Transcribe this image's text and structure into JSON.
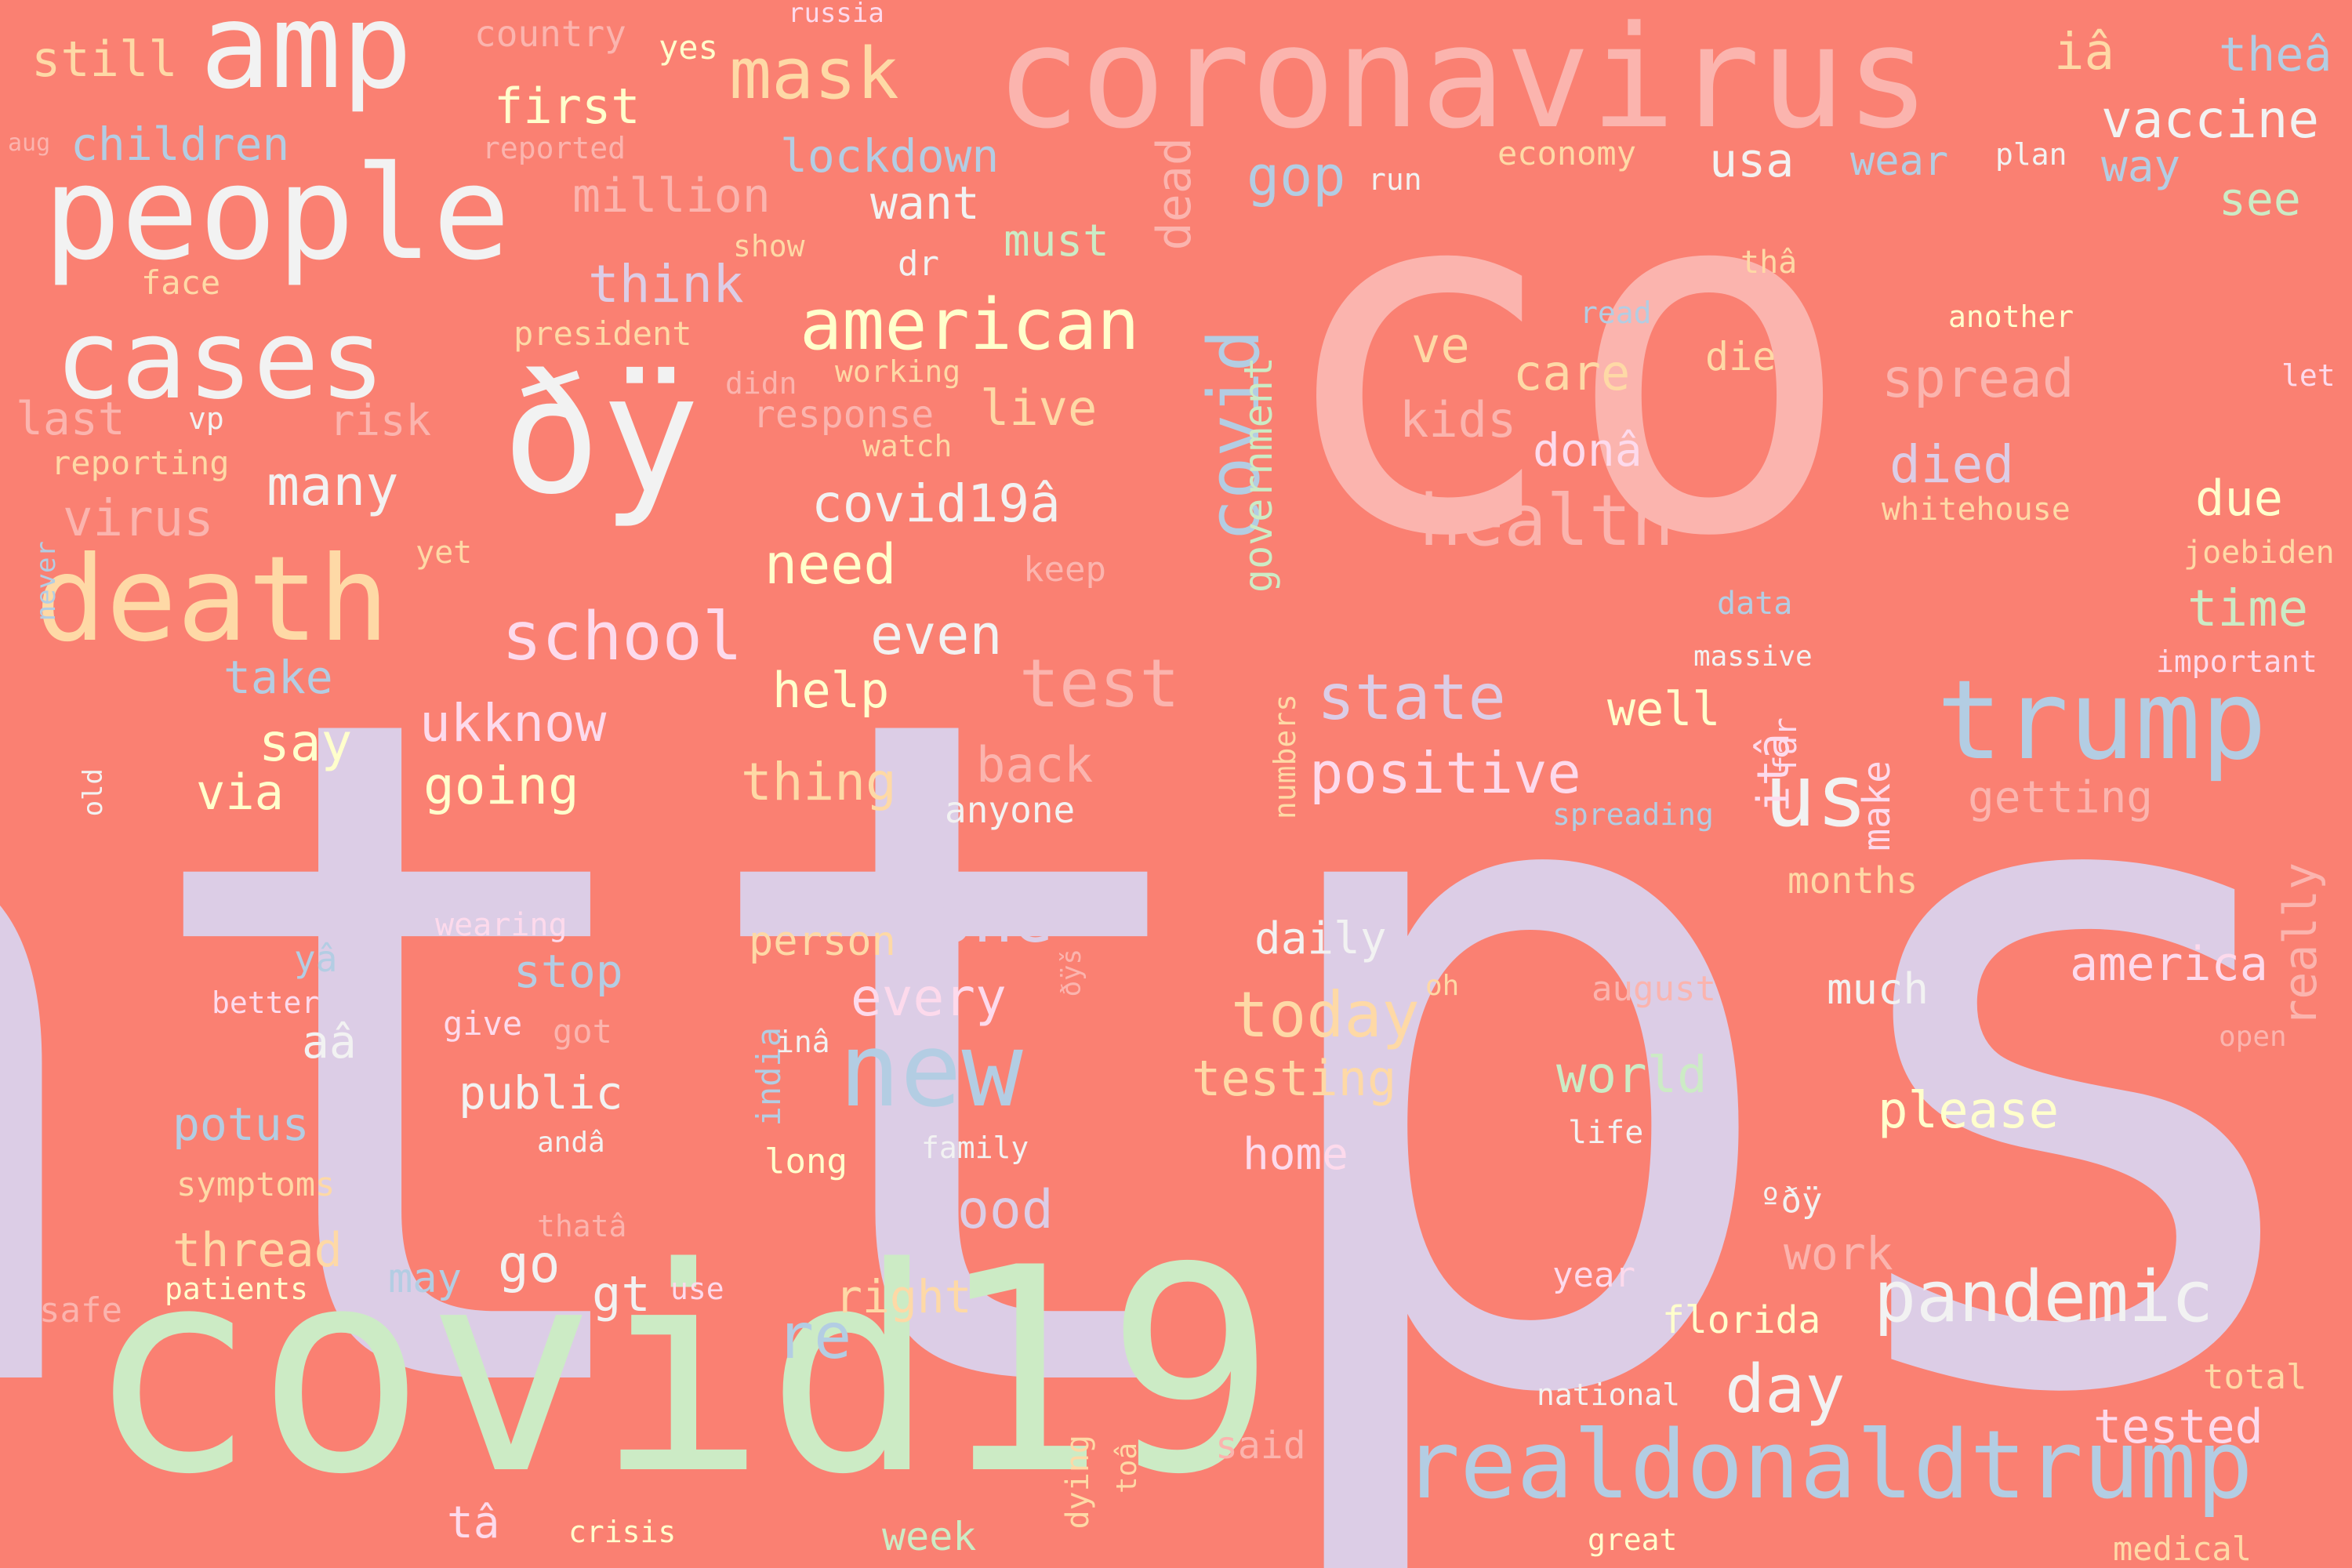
{
  "background": "#fa8072",
  "palette": {
    "lavender": "#dccde6",
    "pink": "#fbb4ae",
    "mint": "#ccebc5",
    "blue": "#b3cde3",
    "yellow": "#ffffcc",
    "peach": "#fed9a6",
    "white": "#f2f2f2",
    "rose": "#fddaec"
  },
  "words": [
    {
      "text": "https",
      "color": "#dccde6"
    },
    {
      "text": "co",
      "color": "#fbb4ae"
    },
    {
      "text": "covid19",
      "color": "#ccebc5"
    },
    {
      "text": "coronavirus",
      "color": "#fbb4ae"
    },
    {
      "text": "people",
      "color": "#f2f2f2"
    },
    {
      "text": "amp",
      "color": "#f2f2f2"
    },
    {
      "text": "ðÿ",
      "color": "#f2f2f2"
    },
    {
      "text": "cases",
      "color": "#f2f2f2"
    },
    {
      "text": "death",
      "color": "#fed9a6"
    },
    {
      "text": "trump",
      "color": "#b3cde3"
    },
    {
      "text": "realdonaldtrump",
      "color": "#b3cde3"
    },
    {
      "text": "new",
      "color": "#b3cde3"
    },
    {
      "text": "american",
      "color": "#ffffcc"
    },
    {
      "text": "pandemic",
      "color": "#f2f2f2"
    },
    {
      "text": "health",
      "color": "#fbb4ae"
    },
    {
      "text": "mask",
      "color": "#fed9a6"
    },
    {
      "text": "covid",
      "color": "#b3cde3"
    },
    {
      "text": "us",
      "color": "#f2f2f2"
    },
    {
      "text": "state",
      "color": "#dccde6"
    },
    {
      "text": "positive",
      "color": "#fddaec"
    },
    {
      "text": "school",
      "color": "#fddaec"
    },
    {
      "text": "test",
      "color": "#fbb4ae"
    },
    {
      "text": "one",
      "color": "#dccde6"
    },
    {
      "text": "today",
      "color": "#fed9a6"
    },
    {
      "text": "day",
      "color": "#f2f2f2"
    },
    {
      "text": "re",
      "color": "#b3cde3"
    },
    {
      "text": "vaccine",
      "color": "#f2f2f2"
    },
    {
      "text": "lockdown",
      "color": "#b3cde3"
    },
    {
      "text": "children",
      "color": "#b3cde3"
    },
    {
      "text": "still",
      "color": "#fed9a6"
    },
    {
      "text": "first",
      "color": "#ffffcc"
    },
    {
      "text": "million",
      "color": "#fbb4ae"
    },
    {
      "text": "think",
      "color": "#dccde6"
    },
    {
      "text": "want",
      "color": "#f2f2f2"
    },
    {
      "text": "must",
      "color": "#ccebc5"
    },
    {
      "text": "gop",
      "color": "#b3cde3"
    },
    {
      "text": "usa",
      "color": "#f2f2f2"
    },
    {
      "text": "wear",
      "color": "#b3cde3"
    },
    {
      "text": "see",
      "color": "#ccebc5"
    },
    {
      "text": "way",
      "color": "#b3cde3"
    },
    {
      "text": "theâ",
      "color": "#b3cde3"
    },
    {
      "text": "iâ",
      "color": "#fed9a6"
    },
    {
      "text": "spread",
      "color": "#fbb4ae"
    },
    {
      "text": "died",
      "color": "#dccde6"
    },
    {
      "text": "due",
      "color": "#ffffcc"
    },
    {
      "text": "time",
      "color": "#ccebc5"
    },
    {
      "text": "care",
      "color": "#fed9a6"
    },
    {
      "text": "kids",
      "color": "#fbb4ae"
    },
    {
      "text": "ve",
      "color": "#fed9a6"
    },
    {
      "text": "donâ",
      "color": "#fddaec"
    },
    {
      "text": "die",
      "color": "#fed9a6"
    },
    {
      "text": "covid19â",
      "color": "#f2f2f2"
    },
    {
      "text": "need",
      "color": "#ffffcc"
    },
    {
      "text": "live",
      "color": "#fed9a6"
    },
    {
      "text": "even",
      "color": "#f2f2f2"
    },
    {
      "text": "help",
      "color": "#ffffcc"
    },
    {
      "text": "many",
      "color": "#f2f2f2"
    },
    {
      "text": "virus",
      "color": "#fbb4ae"
    },
    {
      "text": "risk",
      "color": "#fbb4ae"
    },
    {
      "text": "last",
      "color": "#fbb4ae"
    },
    {
      "text": "say",
      "color": "#ffffcc"
    },
    {
      "text": "going",
      "color": "#ffffcc"
    },
    {
      "text": "ukknow",
      "color": "#fddaec"
    },
    {
      "text": "via",
      "color": "#ffffcc"
    },
    {
      "text": "take",
      "color": "#b3cde3"
    },
    {
      "text": "thing",
      "color": "#fed9a6"
    },
    {
      "text": "back",
      "color": "#fbb4ae"
    },
    {
      "text": "anyone",
      "color": "#f2f2f2"
    },
    {
      "text": "well",
      "color": "#ffffcc"
    },
    {
      "text": "itâ",
      "color": "#fddaec"
    },
    {
      "text": "getting",
      "color": "#fbb4ae"
    },
    {
      "text": "make",
      "color": "#fddaec"
    },
    {
      "text": "months",
      "color": "#fed9a6"
    },
    {
      "text": "really",
      "color": "#fbb4ae"
    },
    {
      "text": "america",
      "color": "#fddaec"
    },
    {
      "text": "much",
      "color": "#f2f2f2"
    },
    {
      "text": "person",
      "color": "#fed9a6"
    },
    {
      "text": "every",
      "color": "#fddaec"
    },
    {
      "text": "daily",
      "color": "#f2f2f2"
    },
    {
      "text": "stop",
      "color": "#b3cde3"
    },
    {
      "text": "testing",
      "color": "#fed9a6"
    },
    {
      "text": "world",
      "color": "#ccebc5"
    },
    {
      "text": "please",
      "color": "#ffffcc"
    },
    {
      "text": "home",
      "color": "#fddaec"
    },
    {
      "text": "public",
      "color": "#f2f2f2"
    },
    {
      "text": "potus",
      "color": "#b3cde3"
    },
    {
      "text": "aâ",
      "color": "#f2f2f2"
    },
    {
      "text": "good",
      "color": "#dccde6"
    },
    {
      "text": "work",
      "color": "#fbb4ae"
    },
    {
      "text": "thread",
      "color": "#fed9a6"
    },
    {
      "text": "go",
      "color": "#f2f2f2"
    },
    {
      "text": "may",
      "color": "#b3cde3"
    },
    {
      "text": "gt",
      "color": "#f2f2f2"
    },
    {
      "text": "right",
      "color": "#fed9a6"
    },
    {
      "text": "florida",
      "color": "#ffffcc"
    },
    {
      "text": "everyone",
      "color": "#dccde6"
    },
    {
      "text": "tested",
      "color": "#fddaec"
    },
    {
      "text": "total",
      "color": "#fed9a6"
    },
    {
      "text": "tâ",
      "color": "#fddaec"
    },
    {
      "text": "week",
      "color": "#ccebc5"
    },
    {
      "text": "government",
      "color": "#ccebc5"
    },
    {
      "text": "dead",
      "color": "#fbb4ae"
    },
    {
      "text": "country",
      "color": "#fbb4ae"
    },
    {
      "text": "yes",
      "color": "#ffffcc"
    },
    {
      "text": "russia",
      "color": "#fddaec"
    },
    {
      "text": "aug",
      "color": "#fbb4ae"
    },
    {
      "text": "reported",
      "color": "#fbb4ae"
    },
    {
      "text": "face",
      "color": "#fed9a6"
    },
    {
      "text": "show",
      "color": "#fed9a6"
    },
    {
      "text": "dr",
      "color": "#f2f2f2"
    },
    {
      "text": "president",
      "color": "#fed9a6"
    },
    {
      "text": "didn",
      "color": "#fbb4ae"
    },
    {
      "text": "working",
      "color": "#fed9a6"
    },
    {
      "text": "response",
      "color": "#fbb4ae"
    },
    {
      "text": "vp",
      "color": "#f2f2f2"
    },
    {
      "text": "watch",
      "color": "#fed9a6"
    },
    {
      "text": "reporting",
      "color": "#fed9a6"
    },
    {
      "text": "yet",
      "color": "#fed9a6"
    },
    {
      "text": "keep",
      "color": "#fbb4ae"
    },
    {
      "text": "economy",
      "color": "#fed9a6"
    },
    {
      "text": "plan",
      "color": "#f2f2f2"
    },
    {
      "text": "run",
      "color": "#f2f2f2"
    },
    {
      "text": "thâ",
      "color": "#fed9a6"
    },
    {
      "text": "read",
      "color": "#b3cde3"
    },
    {
      "text": "another",
      "color": "#ffffcc"
    },
    {
      "text": "let",
      "color": "#fddaec"
    },
    {
      "text": "whitehouse",
      "color": "#fed9a6"
    },
    {
      "text": "joebiden",
      "color": "#fed9a6"
    },
    {
      "text": "data",
      "color": "#b3cde3"
    },
    {
      "text": "massive",
      "color": "#f2f2f2"
    },
    {
      "text": "important",
      "color": "#fddaec"
    },
    {
      "text": "far",
      "color": "#fddaec"
    },
    {
      "text": "spreading",
      "color": "#b3cde3"
    },
    {
      "text": "numbers",
      "color": "#fed9a6"
    },
    {
      "text": "never",
      "color": "#b3cde3"
    },
    {
      "text": "old",
      "color": "#f2f2f2"
    },
    {
      "text": "wearing",
      "color": "#fddaec"
    },
    {
      "text": "yâ",
      "color": "#b3cde3"
    },
    {
      "text": "better",
      "color": "#fddaec"
    },
    {
      "text": "give",
      "color": "#fddaec"
    },
    {
      "text": "got",
      "color": "#fbb4ae"
    },
    {
      "text": "ðÿš",
      "color": "#fbb4ae"
    },
    {
      "text": "oh",
      "color": "#fed9a6"
    },
    {
      "text": "august",
      "color": "#fbb4ae"
    },
    {
      "text": "open",
      "color": "#fbb4ae"
    },
    {
      "text": "india",
      "color": "#b3cde3"
    },
    {
      "text": "inâ",
      "color": "#f2f2f2"
    },
    {
      "text": "symptoms",
      "color": "#fed9a6"
    },
    {
      "text": "andâ",
      "color": "#f2f2f2"
    },
    {
      "text": "long",
      "color": "#ffffcc"
    },
    {
      "text": "family",
      "color": "#f2f2f2"
    },
    {
      "text": "life",
      "color": "#f2f2f2"
    },
    {
      "text": "ºðÿ",
      "color": "#f2f2f2"
    },
    {
      "text": "thatâ",
      "color": "#fbb4ae"
    },
    {
      "text": "year",
      "color": "#fddaec"
    },
    {
      "text": "safe",
      "color": "#fbb4ae"
    },
    {
      "text": "patients",
      "color": "#ffffcc"
    },
    {
      "text": "use",
      "color": "#fddaec"
    },
    {
      "text": "said",
      "color": "#fbb4ae"
    },
    {
      "text": "national",
      "color": "#f2f2f2"
    },
    {
      "text": "dying",
      "color": "#fed9a6"
    },
    {
      "text": "toâ",
      "color": "#fed9a6"
    },
    {
      "text": "crisis",
      "color": "#ffffcc"
    },
    {
      "text": "great",
      "color": "#ffffcc"
    },
    {
      "text": "medical",
      "color": "#fed9a6"
    }
  ]
}
